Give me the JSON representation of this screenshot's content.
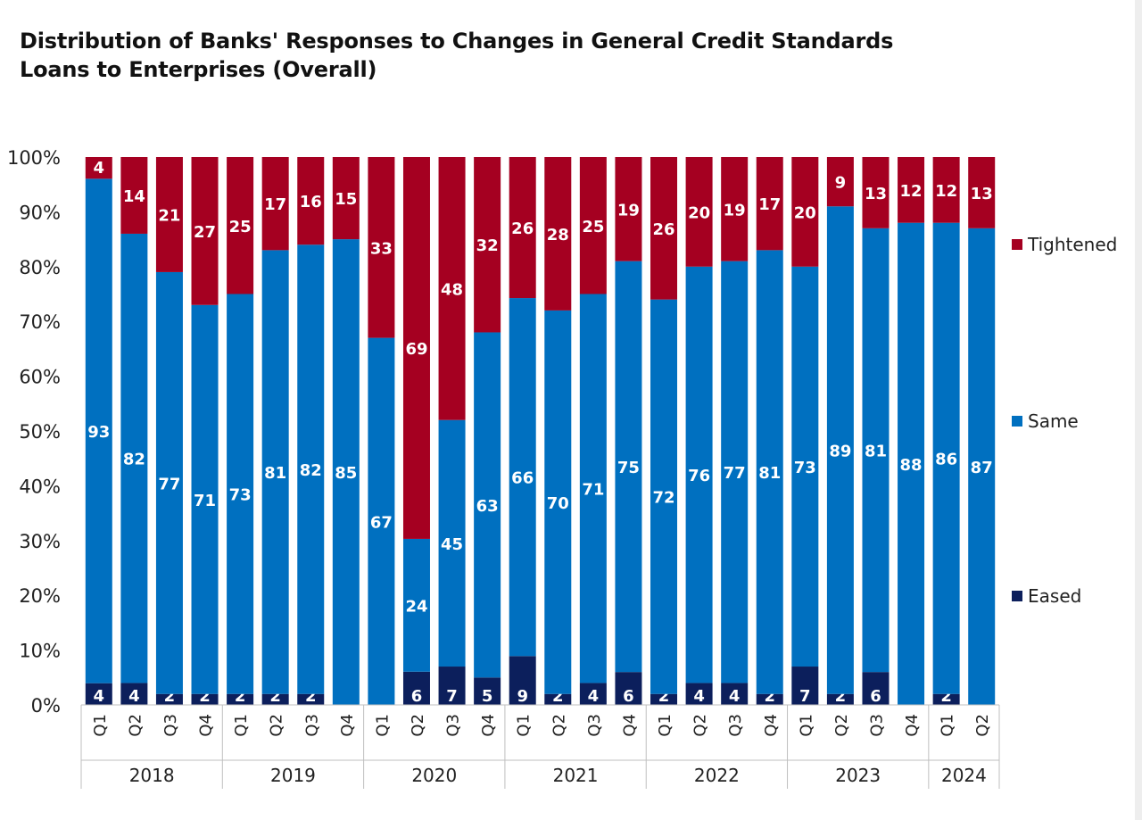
{
  "chart_data": {
    "type": "bar",
    "stacked": true,
    "title": "Distribution of Banks' Responses to Changes in General Credit Standards",
    "subtitle": "Loans to Enterprises (Overall)",
    "ylim": [
      0,
      100
    ],
    "y_ticks": [
      "0%",
      "10%",
      "20%",
      "30%",
      "40%",
      "50%",
      "60%",
      "70%",
      "80%",
      "90%",
      "100%"
    ],
    "categories": [
      "Q1",
      "Q2",
      "Q3",
      "Q4",
      "Q1",
      "Q2",
      "Q3",
      "Q4",
      "Q1",
      "Q2",
      "Q3",
      "Q4",
      "Q1",
      "Q2",
      "Q3",
      "Q4",
      "Q1",
      "Q2",
      "Q3",
      "Q4",
      "Q1",
      "Q2",
      "Q3",
      "Q4",
      "Q1",
      "Q2"
    ],
    "year_groups": [
      {
        "label": "2018",
        "count": 4
      },
      {
        "label": "2019",
        "count": 4
      },
      {
        "label": "2020",
        "count": 4
      },
      {
        "label": "2021",
        "count": 4
      },
      {
        "label": "2022",
        "count": 4
      },
      {
        "label": "2023",
        "count": 4
      },
      {
        "label": "2024",
        "count": 2
      }
    ],
    "series": [
      {
        "name": "Eased",
        "color": "#0c1f5c",
        "values": [
          4,
          4,
          2,
          2,
          2,
          2,
          2,
          0,
          0,
          6,
          7,
          5,
          9,
          2,
          4,
          6,
          2,
          4,
          4,
          2,
          7,
          2,
          6,
          0,
          2,
          0
        ]
      },
      {
        "name": "Same",
        "color": "#0070c0",
        "values": [
          93,
          82,
          77,
          71,
          73,
          81,
          82,
          85,
          67,
          24,
          45,
          63,
          66,
          70,
          71,
          75,
          72,
          76,
          77,
          81,
          73,
          89,
          81,
          88,
          86,
          87
        ]
      },
      {
        "name": "Tightened",
        "color": "#a50021",
        "values": [
          4,
          14,
          21,
          27,
          25,
          17,
          16,
          15,
          33,
          69,
          48,
          32,
          26,
          28,
          25,
          19,
          26,
          20,
          19,
          17,
          20,
          9,
          13,
          12,
          12,
          13
        ]
      }
    ],
    "legend_position": "right",
    "legend_order": [
      "Tightened",
      "Same",
      "Eased"
    ],
    "grid": false
  }
}
